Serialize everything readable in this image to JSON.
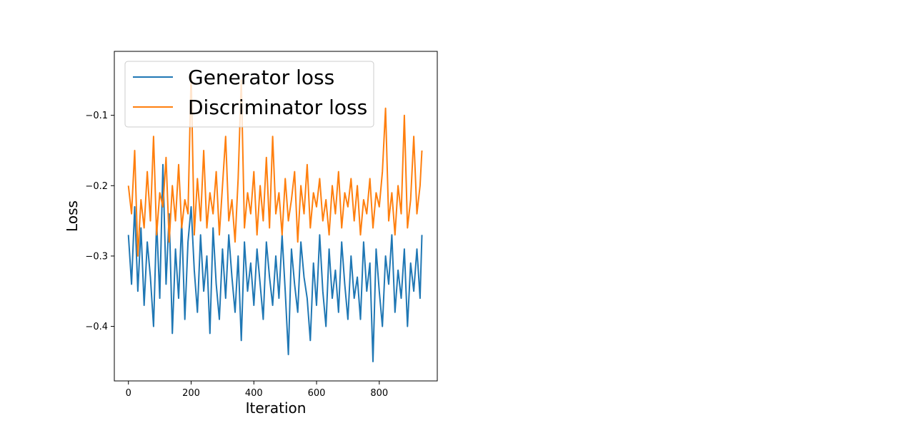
{
  "chart_data": {
    "type": "line",
    "title": "",
    "xlabel": "Iteration",
    "ylabel": "Loss",
    "xlim": [
      -45,
      985
    ],
    "ylim": [
      -0.4775,
      -0.0091
    ],
    "x_ticks": [
      0,
      200,
      400,
      600,
      800
    ],
    "y_ticks": [
      -0.4,
      -0.3,
      -0.2,
      -0.1
    ],
    "y_tick_labels": [
      "−0.4",
      "−0.3",
      "−0.2",
      "−0.1"
    ],
    "grid": false,
    "legend": "upper-left",
    "series": [
      {
        "name": "Generator loss",
        "color": "#1f77b4",
        "x": [
          0,
          10,
          20,
          30,
          40,
          50,
          60,
          70,
          80,
          90,
          100,
          110,
          120,
          130,
          140,
          150,
          160,
          170,
          180,
          190,
          200,
          210,
          220,
          230,
          240,
          250,
          260,
          270,
          280,
          290,
          300,
          310,
          320,
          330,
          340,
          350,
          360,
          370,
          380,
          390,
          400,
          410,
          420,
          430,
          440,
          450,
          460,
          470,
          480,
          490,
          500,
          510,
          520,
          530,
          540,
          550,
          560,
          570,
          580,
          590,
          600,
          610,
          620,
          630,
          640,
          650,
          660,
          670,
          680,
          690,
          700,
          710,
          720,
          730,
          740,
          750,
          760,
          770,
          780,
          790,
          800,
          810,
          820,
          830,
          840,
          850,
          860,
          870,
          880,
          890,
          900,
          910,
          920,
          930,
          936
        ],
        "y": [
          -0.27,
          -0.34,
          -0.23,
          -0.35,
          -0.26,
          -0.37,
          -0.28,
          -0.33,
          -0.4,
          -0.25,
          -0.36,
          -0.17,
          -0.34,
          -0.24,
          -0.41,
          -0.29,
          -0.36,
          -0.25,
          -0.39,
          -0.28,
          -0.23,
          -0.32,
          -0.38,
          -0.27,
          -0.35,
          -0.3,
          -0.41,
          -0.26,
          -0.34,
          -0.39,
          -0.29,
          -0.36,
          -0.27,
          -0.33,
          -0.38,
          -0.3,
          -0.42,
          -0.28,
          -0.35,
          -0.31,
          -0.37,
          -0.29,
          -0.34,
          -0.39,
          -0.28,
          -0.33,
          -0.37,
          -0.3,
          -0.36,
          -0.27,
          -0.35,
          -0.44,
          -0.29,
          -0.34,
          -0.38,
          -0.28,
          -0.33,
          -0.36,
          -0.42,
          -0.31,
          -0.37,
          -0.27,
          -0.35,
          -0.4,
          -0.29,
          -0.36,
          -0.32,
          -0.38,
          -0.28,
          -0.34,
          -0.39,
          -0.3,
          -0.36,
          -0.33,
          -0.39,
          -0.28,
          -0.35,
          -0.31,
          -0.45,
          -0.29,
          -0.35,
          -0.4,
          -0.3,
          -0.34,
          -0.27,
          -0.38,
          -0.32,
          -0.36,
          -0.29,
          -0.4,
          -0.31,
          -0.35,
          -0.29,
          -0.36,
          -0.27
        ]
      },
      {
        "name": "Discriminator loss",
        "color": "#ff7f0e",
        "x": [
          0,
          10,
          20,
          30,
          40,
          50,
          60,
          70,
          80,
          90,
          100,
          110,
          120,
          130,
          140,
          150,
          160,
          170,
          180,
          190,
          200,
          210,
          220,
          230,
          240,
          250,
          260,
          270,
          280,
          290,
          300,
          310,
          320,
          330,
          340,
          350,
          360,
          370,
          380,
          390,
          400,
          410,
          420,
          430,
          440,
          450,
          460,
          470,
          480,
          490,
          500,
          510,
          520,
          530,
          540,
          550,
          560,
          570,
          580,
          590,
          600,
          610,
          620,
          630,
          640,
          650,
          660,
          670,
          680,
          690,
          700,
          710,
          720,
          730,
          740,
          750,
          760,
          770,
          780,
          790,
          800,
          810,
          820,
          830,
          840,
          850,
          860,
          870,
          880,
          890,
          900,
          910,
          920,
          930,
          936
        ],
        "y": [
          -0.2,
          -0.24,
          -0.15,
          -0.3,
          -0.22,
          -0.26,
          -0.18,
          -0.25,
          -0.13,
          -0.27,
          -0.21,
          -0.23,
          -0.16,
          -0.28,
          -0.2,
          -0.25,
          -0.17,
          -0.26,
          -0.22,
          -0.24,
          -0.04,
          -0.27,
          -0.19,
          -0.25,
          -0.15,
          -0.26,
          -0.21,
          -0.24,
          -0.18,
          -0.27,
          -0.2,
          -0.13,
          -0.25,
          -0.22,
          -0.28,
          -0.19,
          -0.05,
          -0.26,
          -0.21,
          -0.24,
          -0.18,
          -0.27,
          -0.2,
          -0.25,
          -0.16,
          -0.26,
          -0.13,
          -0.24,
          -0.21,
          -0.27,
          -0.19,
          -0.25,
          -0.22,
          -0.18,
          -0.28,
          -0.2,
          -0.24,
          -0.17,
          -0.26,
          -0.21,
          -0.23,
          -0.19,
          -0.25,
          -0.22,
          -0.27,
          -0.2,
          -0.24,
          -0.18,
          -0.26,
          -0.21,
          -0.23,
          -0.19,
          -0.25,
          -0.2,
          -0.27,
          -0.22,
          -0.24,
          -0.19,
          -0.26,
          -0.21,
          -0.23,
          -0.18,
          -0.09,
          -0.25,
          -0.21,
          -0.27,
          -0.2,
          -0.24,
          -0.1,
          -0.26,
          -0.22,
          -0.13,
          -0.24,
          -0.2,
          -0.15
        ]
      }
    ]
  }
}
